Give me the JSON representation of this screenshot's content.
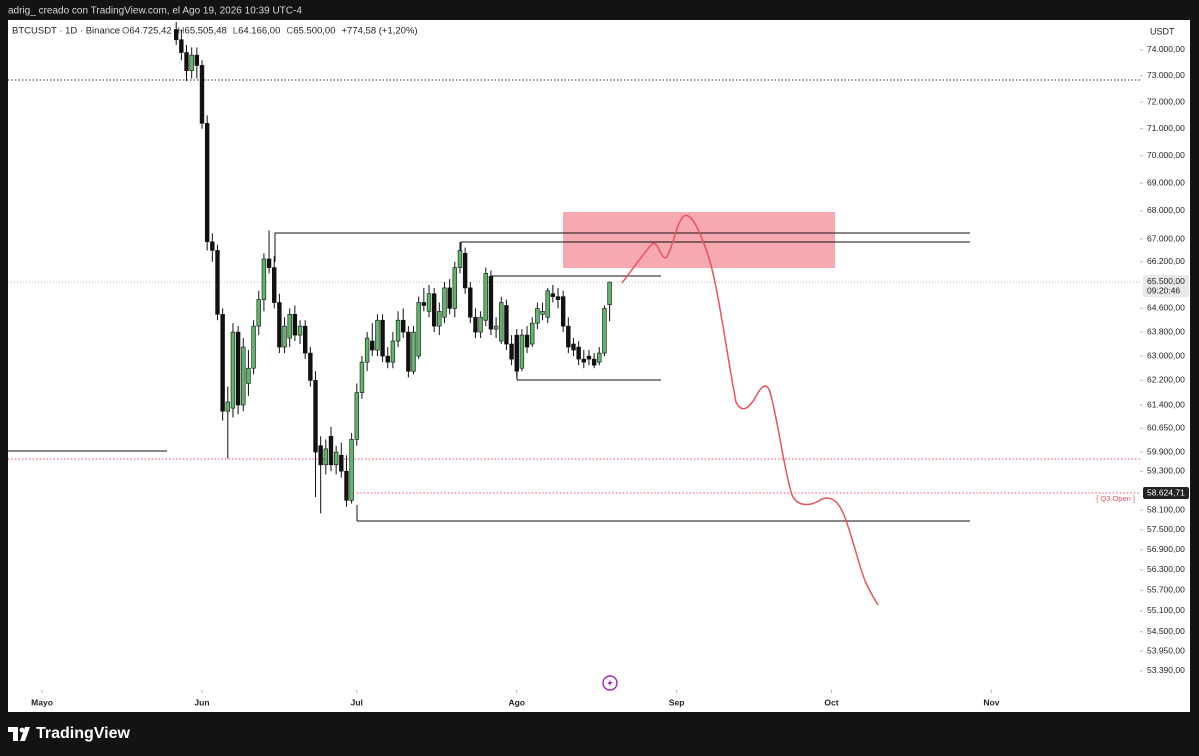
{
  "frame": {
    "caption": "adrig_ creado con TradingView.com, el Ago 19, 2026 10:39 UTC-4",
    "brand": "TradingView"
  },
  "chart_data": {
    "type": "candlestick",
    "symbol": "BTCUSDT · 1D · Binance",
    "ohlc_header": [
      {
        "key": "O",
        "text": "64.725,42"
      },
      {
        "key": "H",
        "text": "65.505,48"
      },
      {
        "key": "L",
        "text": "64.166,00"
      },
      {
        "key": "C",
        "text": "65.500,00"
      },
      {
        "key": "",
        "text": "+774,58 (+1,20%)"
      }
    ],
    "currency": "USDT",
    "log_scale": true,
    "up_color": "#5fb56a",
    "down_color": "#111111",
    "xlim": [
      -6.6,
      212.8
    ],
    "xticks": [
      {
        "value": 0,
        "label": "Mayo"
      },
      {
        "value": 31,
        "label": "Jun"
      },
      {
        "value": 61,
        "label": "Jul"
      },
      {
        "value": 92,
        "label": "Ago"
      },
      {
        "value": 123,
        "label": "Sep"
      },
      {
        "value": 153,
        "label": "Oct"
      },
      {
        "value": 184,
        "label": "Nov"
      }
    ],
    "ylim": [
      52857,
      75176
    ],
    "yticks": [
      {
        "value": 74000,
        "label": "74.000,00"
      },
      {
        "value": 73000,
        "label": "73.000,00"
      },
      {
        "value": 72000,
        "label": "72.000,00"
      },
      {
        "value": 71000,
        "label": "71.000,00"
      },
      {
        "value": 70000,
        "label": "70.000,00"
      },
      {
        "value": 69000,
        "label": "69.000,00"
      },
      {
        "value": 68000,
        "label": "68.000,00"
      },
      {
        "value": 67000,
        "label": "67.000,00"
      },
      {
        "value": 66200,
        "label": "66.200,00"
      },
      {
        "value": 64600,
        "label": "64.600,00"
      },
      {
        "value": 63800,
        "label": "63.800,00"
      },
      {
        "value": 63000,
        "label": "63.000,00"
      },
      {
        "value": 62200,
        "label": "62.200,00"
      },
      {
        "value": 61400,
        "label": "61.400,00"
      },
      {
        "value": 60650,
        "label": "60.650,00"
      },
      {
        "value": 59900,
        "label": "59.900,00"
      },
      {
        "value": 59300,
        "label": "59.300,00"
      },
      {
        "value": 58100,
        "label": "58.100,00"
      },
      {
        "value": 57500,
        "label": "57.500,00"
      },
      {
        "value": 56900,
        "label": "56.900,00"
      },
      {
        "value": 56300,
        "label": "56.300,00"
      },
      {
        "value": 55700,
        "label": "55.700,00"
      },
      {
        "value": 55100,
        "label": "55.100,00"
      },
      {
        "value": 54500,
        "label": "54.500,00"
      },
      {
        "value": 53950,
        "label": "53.950,00"
      },
      {
        "value": 53390,
        "label": "53.390,00"
      }
    ],
    "last_price": {
      "value": 65500,
      "label": "65.500,00",
      "countdown": "09:20:46"
    },
    "q3_open": {
      "value": 58624.71,
      "label": "58.624,71",
      "text": "[ Q3 Open ]"
    },
    "x": [
      26,
      27,
      28,
      29,
      30,
      31,
      32,
      33,
      34,
      35,
      36,
      37,
      38,
      39,
      40,
      41,
      42,
      43,
      44,
      45,
      46,
      47,
      48,
      49,
      50,
      51,
      52,
      53,
      54,
      55,
      56,
      57,
      58,
      59,
      60,
      61,
      62,
      63,
      64,
      65,
      66,
      67,
      68,
      69,
      70,
      71,
      72,
      73,
      74,
      75,
      76,
      77,
      78,
      79,
      80,
      81,
      82,
      83,
      84,
      85,
      86,
      87,
      88,
      89,
      90,
      91,
      92,
      93,
      94,
      95,
      96,
      97,
      98,
      99,
      100,
      101,
      102,
      103,
      104,
      105,
      106,
      107,
      108,
      109,
      110
    ],
    "open": [
      74800,
      74400,
      73900,
      73200,
      73800,
      73400,
      71200,
      66900,
      66600,
      64400,
      61200,
      61300,
      63800,
      61400,
      62100,
      62600,
      64000,
      64900,
      66300,
      66000,
      64800,
      63300,
      63600,
      64400,
      63700,
      64000,
      63100,
      62200,
      60100,
      59500,
      60400,
      59500,
      59800,
      59300,
      58400,
      60300,
      61800,
      62800,
      63500,
      63200,
      64200,
      63000,
      62800,
      63500,
      64200,
      63800,
      62500,
      63000,
      64800,
      64500,
      65100,
      64000,
      64300,
      65300,
      64600,
      66000,
      66500,
      65300,
      64300,
      63800,
      64200,
      65700,
      63900,
      63500,
      64700,
      63400,
      63700,
      62600,
      63700,
      63400,
      64100,
      64400,
      64300,
      65100,
      65000,
      65000,
      64000,
      63400,
      63300,
      62900,
      63000,
      62900,
      62800,
      63100,
      64725.42
    ],
    "high": [
      75100,
      74800,
      74200,
      74100,
      74100,
      73600,
      71500,
      67200,
      66800,
      64600,
      62000,
      64100,
      64000,
      63600,
      63200,
      64200,
      65200,
      66500,
      67300,
      66400,
      65100,
      64300,
      64600,
      64700,
      64200,
      64200,
      63300,
      62500,
      60400,
      60300,
      60700,
      60100,
      60200,
      59800,
      60500,
      62100,
      63000,
      63800,
      64100,
      64400,
      64400,
      63300,
      63800,
      64500,
      64600,
      64000,
      64000,
      65000,
      65300,
      65400,
      65300,
      64800,
      65500,
      65600,
      66200,
      66900,
      66700,
      65500,
      64600,
      64500,
      66000,
      65900,
      64300,
      65000,
      64900,
      63700,
      63900,
      63900,
      64000,
      64300,
      64800,
      64800,
      65300,
      65400,
      65300,
      65200,
      64300,
      63600,
      63500,
      63200,
      63200,
      63100,
      63300,
      64700,
      65505.48
    ],
    "low": [
      74200,
      73600,
      72800,
      72900,
      72900,
      71000,
      66600,
      66200,
      64200,
      60900,
      59700,
      61000,
      61100,
      61200,
      61700,
      62400,
      63700,
      64500,
      65800,
      64600,
      63100,
      63100,
      63300,
      63500,
      63400,
      62900,
      62000,
      58500,
      58000,
      59200,
      59300,
      59200,
      59100,
      58200,
      58300,
      60100,
      61600,
      62500,
      63000,
      63000,
      62800,
      62600,
      62600,
      63300,
      63600,
      62300,
      62400,
      62900,
      64500,
      64300,
      63800,
      63700,
      64100,
      64400,
      64300,
      65800,
      65100,
      64100,
      63600,
      63600,
      64000,
      63700,
      63600,
      63400,
      63200,
      62700,
      62300,
      62500,
      63100,
      63300,
      63900,
      64200,
      64100,
      64800,
      64600,
      63800,
      63100,
      63000,
      62700,
      62600,
      62700,
      62600,
      62700,
      63000,
      64166
    ],
    "close": [
      74400,
      73900,
      73200,
      73800,
      73400,
      71200,
      66900,
      66600,
      64400,
      61200,
      61500,
      63800,
      61400,
      63300,
      62600,
      64000,
      64900,
      66300,
      66000,
      64800,
      63300,
      64000,
      64400,
      63700,
      64000,
      63100,
      62200,
      59900,
      59500,
      60000,
      59500,
      59900,
      59300,
      58400,
      60300,
      61800,
      62800,
      63600,
      63200,
      64200,
      63000,
      62800,
      63500,
      64200,
      63800,
      62500,
      63800,
      64800,
      64700,
      65100,
      64000,
      64500,
      65300,
      64600,
      66000,
      66600,
      65300,
      64300,
      63800,
      64300,
      65800,
      63900,
      64000,
      64800,
      63400,
      62900,
      62500,
      63700,
      63300,
      64100,
      64600,
      64500,
      65200,
      65000,
      64900,
      64000,
      63300,
      63200,
      62900,
      62800,
      62900,
      62700,
      63100,
      64600,
      65500
    ]
  }
}
